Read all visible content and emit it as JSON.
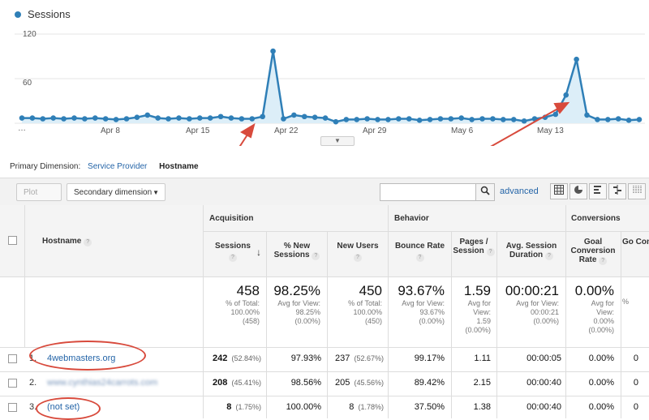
{
  "chart_data": {
    "type": "line",
    "series": [
      {
        "name": "Sessions",
        "values": [
          7,
          7,
          6,
          7,
          6,
          7,
          6,
          7,
          6,
          5,
          6,
          8,
          11,
          7,
          6,
          7,
          6,
          7,
          7,
          9,
          7,
          6,
          6,
          9,
          97,
          6,
          11,
          9,
          8,
          7,
          2,
          5,
          5,
          6,
          5,
          5,
          6,
          6,
          4,
          5,
          6,
          6,
          7,
          5,
          6,
          6,
          5,
          5,
          3,
          6,
          8,
          12,
          38,
          86,
          11,
          5,
          5,
          6,
          4,
          5
        ]
      }
    ],
    "ylim": [
      0,
      120
    ],
    "yticks": [
      "120",
      "60"
    ],
    "xticks": [
      "…",
      "Apr 8",
      "Apr 15",
      "Apr 22",
      "Apr 29",
      "May 6",
      "May 13"
    ],
    "grid": true,
    "legend_position": "top-left",
    "color": "#2f7fb7"
  },
  "primary_dimension": {
    "label": "Primary Dimension:",
    "service_provider": "Service Provider",
    "hostname": "Hostname"
  },
  "toolbar": {
    "plot_rows": "Plot Rows",
    "secondary_dimension": "Secondary dimension",
    "search_value": "",
    "advanced": "advanced",
    "view_icons": [
      "grid-view-icon",
      "pie-view-icon",
      "bar-view-icon",
      "compare-view-icon",
      "pivot-view-icon"
    ]
  },
  "table": {
    "hostname_header": "Hostname",
    "groups": {
      "acquisition": "Acquisition",
      "behavior": "Behavior",
      "conversions": "Conversions"
    },
    "headers": {
      "sessions": "Sessions",
      "new_sessions": "% New Sessions",
      "new_users": "New Users",
      "bounce_rate": "Bounce Rate",
      "pages_session": "Pages / Session",
      "avg_duration": "Avg. Session Duration",
      "goal_rate": "Goal Conversion Rate",
      "goal_comp": "Go Comp"
    },
    "totals": {
      "sessions": {
        "value": "458",
        "l1": "% of Total:",
        "l2": "100.00%",
        "l3": "(458)"
      },
      "new_sessions": {
        "value": "98.25%",
        "l1": "Avg for View:",
        "l2": "98.25%",
        "l3": "(0.00%)"
      },
      "new_users": {
        "value": "450",
        "l1": "% of Total:",
        "l2": "100.00%",
        "l3": "(450)"
      },
      "bounce_rate": {
        "value": "93.67%",
        "l1": "Avg for View:",
        "l2": "93.67%",
        "l3": "(0.00%)"
      },
      "pages_session": {
        "value": "1.59",
        "l1": "Avg for",
        "l2": "View:",
        "l3": "1.59",
        "l4": "(0.00%)"
      },
      "avg_duration": {
        "value": "00:00:21",
        "l1": "Avg for View:",
        "l2": "00:00:21",
        "l3": "(0.00%)"
      },
      "goal_rate": {
        "value": "0.00%",
        "l1": "Avg for",
        "l2": "View:",
        "l3": "0.00%",
        "l4": "(0.00%)"
      },
      "goal_comp": {
        "value": "",
        "l1": "%",
        "l2": "",
        "l3": ""
      }
    },
    "rows": [
      {
        "num": "1.",
        "host": "4webmasters.org",
        "sessions": "242",
        "sessions_pct": "(52.84%)",
        "new_sessions": "97.93%",
        "new_users": "237",
        "new_users_pct": "(52.67%)",
        "bounce_rate": "99.17%",
        "pages": "1.11",
        "duration": "00:00:05",
        "goal_rate": "0.00%",
        "goal_comp": "0"
      },
      {
        "num": "2.",
        "host": "www.cynthias24carrots.com",
        "sessions": "208",
        "sessions_pct": "(45.41%)",
        "new_sessions": "98.56%",
        "new_users": "205",
        "new_users_pct": "(45.56%)",
        "bounce_rate": "89.42%",
        "pages": "2.15",
        "duration": "00:00:40",
        "goal_rate": "0.00%",
        "goal_comp": "0"
      },
      {
        "num": "3.",
        "host": "(not set)",
        "sessions": "8",
        "sessions_pct": "(1.75%)",
        "new_sessions": "100.00%",
        "new_users": "8",
        "new_users_pct": "(1.78%)",
        "bounce_rate": "37.50%",
        "pages": "1.38",
        "duration": "00:00:40",
        "goal_rate": "0.00%",
        "goal_comp": "0"
      }
    ]
  },
  "annotation_color": "#d84a3c"
}
